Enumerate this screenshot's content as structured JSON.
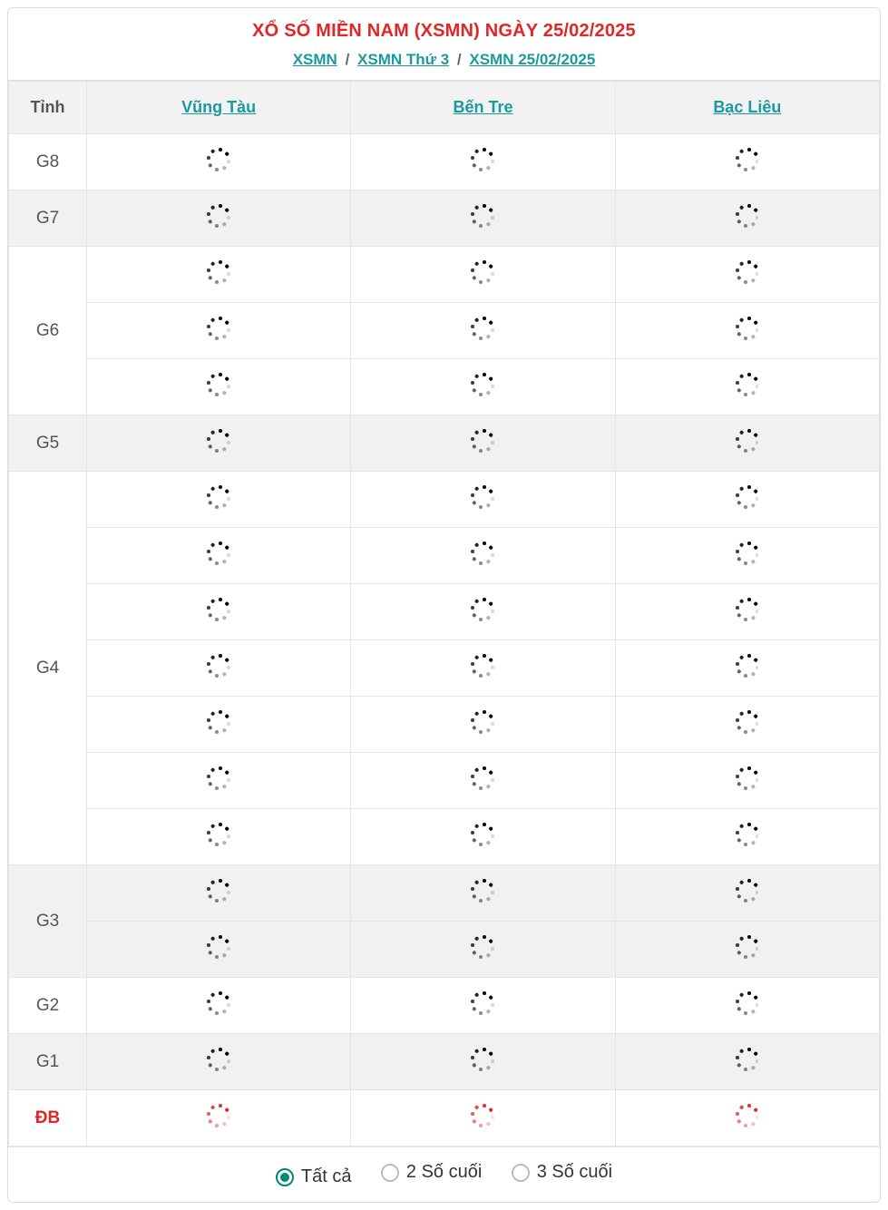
{
  "header": {
    "title": "XỔ SỐ MIỀN NAM (XSMN) NGÀY 25/02/2025",
    "breadcrumbs": [
      {
        "label": "XSMN"
      },
      {
        "label": "XSMN Thứ 3"
      },
      {
        "label": "XSMN 25/02/2025"
      }
    ],
    "separator": "/"
  },
  "colors": {
    "title": "#e02626",
    "link": "#1a9aa0",
    "special": "#e02626",
    "accent": "#00897b",
    "border": "#e5e5e5",
    "shade": "#f1f1f1"
  },
  "table": {
    "corner": "Tỉnh",
    "provinces": [
      "Vũng Tàu",
      "Bến Tre",
      "Bạc Liêu"
    ],
    "prizes": [
      {
        "id": "G8",
        "label": "G8",
        "rows": 1,
        "shade": false,
        "special": false
      },
      {
        "id": "G7",
        "label": "G7",
        "rows": 1,
        "shade": true,
        "special": false
      },
      {
        "id": "G6",
        "label": "G6",
        "rows": 3,
        "shade": false,
        "special": false
      },
      {
        "id": "G5",
        "label": "G5",
        "rows": 1,
        "shade": true,
        "special": false
      },
      {
        "id": "G4",
        "label": "G4",
        "rows": 7,
        "shade": false,
        "special": false
      },
      {
        "id": "G3",
        "label": "G3",
        "rows": 2,
        "shade": true,
        "special": false
      },
      {
        "id": "G2",
        "label": "G2",
        "rows": 1,
        "shade": false,
        "special": false
      },
      {
        "id": "G1",
        "label": "G1",
        "rows": 1,
        "shade": true,
        "special": false
      },
      {
        "id": "DB",
        "label": "ĐB",
        "rows": 1,
        "shade": false,
        "special": true
      }
    ],
    "loading": true
  },
  "filters": {
    "options": [
      {
        "id": "all",
        "label": "Tất cả",
        "selected": true
      },
      {
        "id": "last2",
        "label": "2 Số cuối",
        "selected": false
      },
      {
        "id": "last3",
        "label": "3 Số cuối",
        "selected": false
      }
    ]
  }
}
